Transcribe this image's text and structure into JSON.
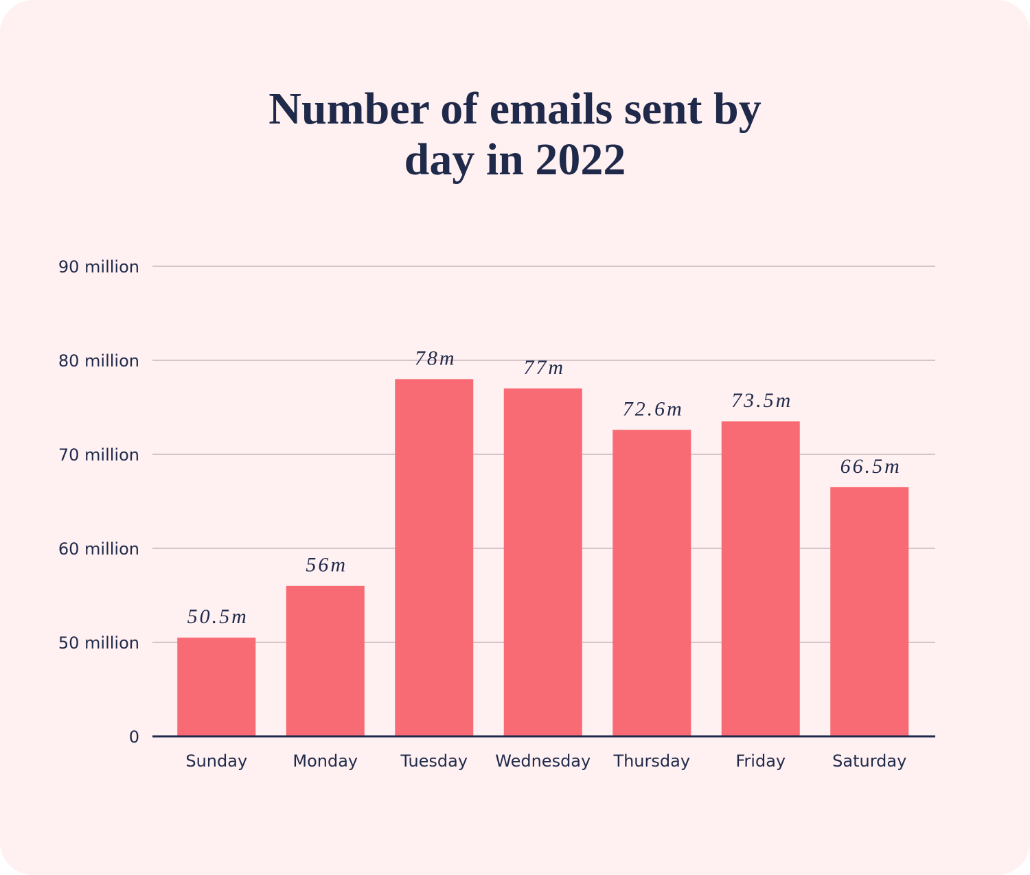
{
  "chart_data": {
    "type": "bar",
    "title": "Number of emails sent by day in 2022",
    "categories": [
      "Sunday",
      "Monday",
      "Tuesday",
      "Wednesday",
      "Thursday",
      "Friday",
      "Saturday"
    ],
    "values": [
      50.5,
      56,
      78,
      77,
      72.6,
      73.5,
      66.5
    ],
    "value_labels": [
      "50.5m",
      "56m",
      "78m",
      "77m",
      "72.6m",
      "73.5m",
      "66.5m"
    ],
    "color": "#f86b74",
    "ylim": [
      0,
      90
    ],
    "yticks": [
      0,
      {
        "value": 50,
        "label": "50 million"
      },
      {
        "value": 60,
        "label": "60 million"
      },
      {
        "value": 70,
        "label": "70 million"
      },
      {
        "value": 80,
        "label": "80 million"
      },
      {
        "value": 90,
        "label": "90 million"
      }
    ],
    "grid": true
  }
}
